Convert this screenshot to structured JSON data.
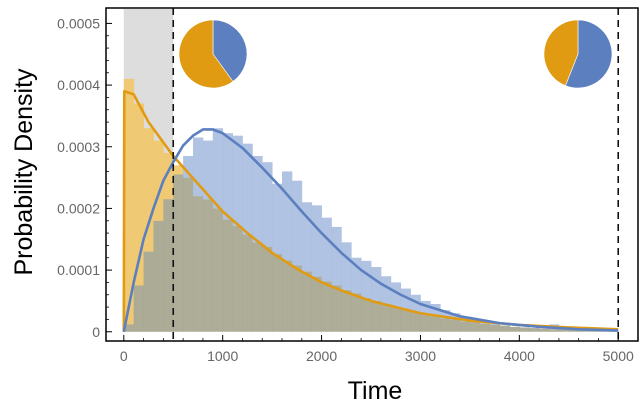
{
  "chart_data": {
    "type": "histogram-with-density",
    "xlabel": "Time",
    "ylabel": "Probability Density",
    "xlim": [
      -180,
      5200
    ],
    "ylim": [
      -1.5e-05,
      0.000525
    ],
    "x_ticks": [
      0,
      1000,
      2000,
      3000,
      4000,
      5000
    ],
    "x_tick_labels": [
      "0",
      "1000",
      "2000",
      "3000",
      "4000",
      "5000"
    ],
    "y_ticks": [
      0,
      0.0001,
      0.0002,
      0.0003,
      0.0004,
      0.0005
    ],
    "y_tick_labels": [
      "0",
      "0.0001",
      "0.0002",
      "0.0003",
      "0.0004",
      "0.0005"
    ],
    "shaded_region": [
      0,
      500
    ],
    "dashed_lines_x": [
      500,
      5000
    ],
    "colors": {
      "blue": "#5b7fbf",
      "orange": "#e09b12",
      "blue_fill": "#a9bce0",
      "orange_fill": "#f1c668",
      "overlap_fill": "#a7a68f",
      "shade": "#dddddd"
    },
    "histogram": {
      "bin_width": 100,
      "bin_start": 0,
      "series": [
        {
          "color_key": "orange",
          "values": [
            0.00041,
            0.00037,
            0.00033,
            0.00031,
            0.00029,
            0.00027,
            0.00025,
            0.00022,
            0.000215,
            0.0002,
            0.000182,
            0.000172,
            0.000158,
            0.000145,
            0.000138,
            0.000126,
            0.000116,
            0.000108,
            9.8e-05,
            9e-05,
            8.2e-05,
            7.5e-05,
            6.8e-05,
            6.2e-05,
            5.5e-05,
            5e-05,
            4.5e-05,
            4e-05,
            3.6e-05,
            3.2e-05,
            2.8e-05,
            2.5e-05,
            2.2e-05,
            2e-05,
            1.7e-05,
            1.5e-05,
            1.3e-05,
            1.1e-05,
            1e-05,
            8e-06,
            7e-06,
            6e-06,
            5e-06,
            4e-06,
            4e-06,
            3e-06,
            3e-06,
            2e-06,
            2e-06,
            2e-06
          ]
        },
        {
          "color_key": "blue",
          "values": [
            1.2e-05,
            7.5e-05,
            0.00013,
            0.00018,
            0.000215,
            0.000255,
            0.000285,
            0.000315,
            0.00031,
            0.00033,
            0.000322,
            0.000318,
            0.000305,
            0.000285,
            0.000275,
            0.00024,
            0.00026,
            0.000245,
            0.00021,
            0.000205,
            0.000185,
            0.00017,
            0.000145,
            0.00012,
            0.000115,
            0.000105,
            9e-05,
            8e-05,
            7e-05,
            6e-05,
            5e-05,
            4.5e-05,
            3.5e-05,
            3e-05,
            2.4e-05,
            2e-05,
            1.6e-05,
            1.3e-05,
            1e-05,
            8e-06,
            7e-06,
            6e-06,
            5e-06,
            1.2e-05,
            4e-06,
            3e-06,
            3e-06,
            2e-06,
            2e-06,
            2e-06
          ]
        }
      ]
    },
    "curves": [
      {
        "color_key": "orange",
        "points": [
          [
            0,
            0
          ],
          [
            5,
            0.00039
          ],
          [
            100,
            0.000385
          ],
          [
            250,
            0.00034
          ],
          [
            500,
            0.000285
          ],
          [
            750,
            0.00024
          ],
          [
            1000,
            0.000195
          ],
          [
            1250,
            0.00016
          ],
          [
            1500,
            0.000128
          ],
          [
            1750,
            0.000102
          ],
          [
            2000,
            8e-05
          ],
          [
            2250,
            6.4e-05
          ],
          [
            2500,
            5e-05
          ],
          [
            3000,
            3e-05
          ],
          [
            3500,
            1.8e-05
          ],
          [
            4000,
            1.1e-05
          ],
          [
            4500,
            7e-06
          ],
          [
            5000,
            4e-06
          ]
        ]
      },
      {
        "color_key": "blue",
        "points": [
          [
            0,
            0
          ],
          [
            100,
            8e-05
          ],
          [
            200,
            0.00015
          ],
          [
            300,
            0.0002
          ],
          [
            400,
            0.000245
          ],
          [
            500,
            0.000275
          ],
          [
            600,
            0.000302
          ],
          [
            700,
            0.000318
          ],
          [
            800,
            0.000328
          ],
          [
            900,
            0.000328
          ],
          [
            1000,
            0.000322
          ],
          [
            1200,
            0.000298
          ],
          [
            1400,
            0.000266
          ],
          [
            1600,
            0.000232
          ],
          [
            1800,
            0.000195
          ],
          [
            2000,
            0.00016
          ],
          [
            2200,
            0.000128
          ],
          [
            2400,
            0.0001
          ],
          [
            2600,
            7.8e-05
          ],
          [
            2800,
            6e-05
          ],
          [
            3000,
            4.5e-05
          ],
          [
            3400,
            2.5e-05
          ],
          [
            3800,
            1.4e-05
          ],
          [
            4200,
            8e-06
          ],
          [
            4600,
            4e-06
          ],
          [
            5000,
            2e-06
          ]
        ]
      }
    ],
    "pies": [
      {
        "position": "top-left",
        "slices": [
          {
            "color_key": "blue",
            "fraction": 0.4
          },
          {
            "color_key": "orange",
            "fraction": 0.6
          }
        ]
      },
      {
        "position": "top-right",
        "slices": [
          {
            "color_key": "blue",
            "fraction": 0.56
          },
          {
            "color_key": "orange",
            "fraction": 0.44
          }
        ]
      }
    ]
  }
}
